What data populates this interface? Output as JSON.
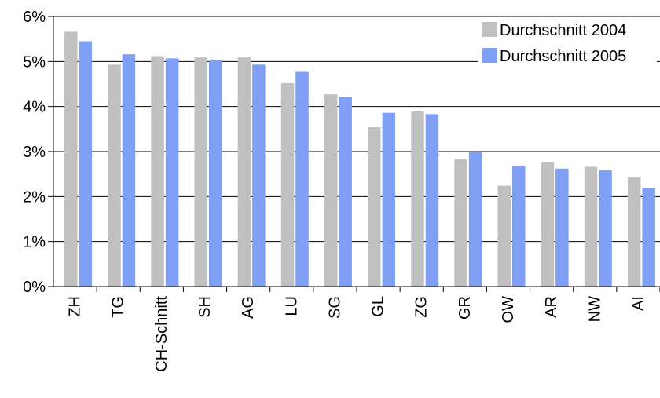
{
  "chart_data": {
    "type": "bar",
    "title": "",
    "xlabel": "",
    "ylabel": "",
    "categories": [
      "ZH",
      "TG",
      "CH-Schnitt",
      "SH",
      "AG",
      "LU",
      "SG",
      "GL",
      "ZG",
      "GR",
      "OW",
      "AR",
      "NW",
      "AI"
    ],
    "series": [
      {
        "name": "Durchschnitt 2004",
        "color": "#c0c0c0",
        "values": [
          5.66,
          4.93,
          5.12,
          5.09,
          5.09,
          4.52,
          4.27,
          3.54,
          3.89,
          2.83,
          2.24,
          2.76,
          2.66,
          2.43
        ]
      },
      {
        "name": "Durchschnitt 2005",
        "color": "#7f9ff5",
        "values": [
          5.45,
          5.16,
          5.07,
          5.03,
          4.93,
          4.77,
          4.21,
          3.86,
          3.83,
          3.0,
          2.68,
          2.62,
          2.58,
          2.19
        ]
      }
    ],
    "ylim": [
      0,
      6
    ],
    "yticks": [
      "0%",
      "1%",
      "2%",
      "3%",
      "4%",
      "5%",
      "6%"
    ],
    "grid": true,
    "legend_position": "top-right"
  }
}
